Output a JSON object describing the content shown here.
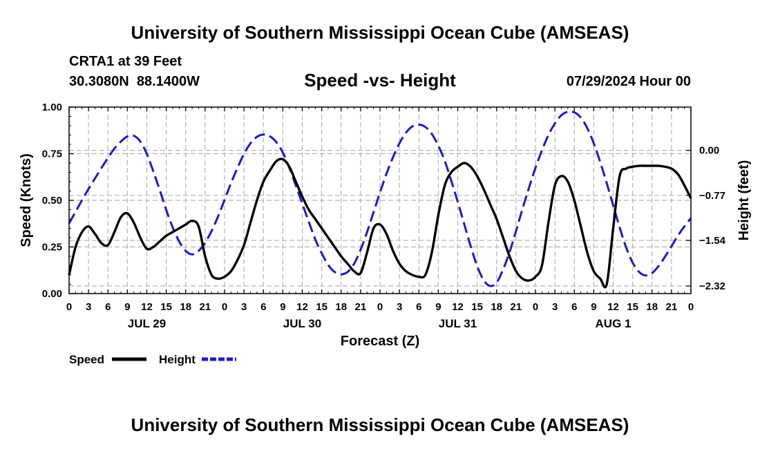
{
  "header": {
    "title": "University of Southern Mississippi Ocean Cube (AMSEAS)",
    "station": "CRTA1 at 39 Feet",
    "coords": "30.3080N  88.1400W",
    "chart_title": "Speed -vs- Height",
    "run_time": "07/29/2024 Hour 00"
  },
  "footer": {
    "title": "University of Southern Mississippi Ocean Cube (AMSEAS)"
  },
  "colors": {
    "speed": "#000000",
    "height": "#1a1acc",
    "grid": "#b4b4b4"
  },
  "chart_data": {
    "type": "line",
    "title": "Speed -vs- Height",
    "xlabel": "Forecast (Z)",
    "ylabel": "Speed (Knots)",
    "y2label": "Height (feet)",
    "xlim": [
      0,
      96
    ],
    "ylim": [
      0,
      1
    ],
    "y2lim": [
      -2.45,
      0.74
    ],
    "x_ticks": [
      0,
      3,
      6,
      9,
      12,
      15,
      18,
      21,
      24,
      27,
      30,
      33,
      36,
      39,
      42,
      45,
      48,
      51,
      54,
      57,
      60,
      63,
      66,
      69,
      72,
      75,
      78,
      81,
      84,
      87,
      90,
      93,
      96
    ],
    "x_tick_labels": [
      "0",
      "3",
      "6",
      "9",
      "12",
      "15",
      "18",
      "21",
      "0",
      "3",
      "6",
      "9",
      "12",
      "15",
      "18",
      "21",
      "0",
      "3",
      "6",
      "9",
      "12",
      "15",
      "18",
      "21",
      "0",
      "3",
      "6",
      "9",
      "12",
      "15",
      "18",
      "21",
      "0"
    ],
    "day_labels": [
      {
        "label": "JUL 29",
        "x": 12
      },
      {
        "label": "JUL 30",
        "x": 36
      },
      {
        "label": "JUL 31",
        "x": 60
      },
      {
        "label": "AUG 1",
        "x": 84
      }
    ],
    "y_ticks": [
      0.0,
      0.25,
      0.5,
      0.75,
      1.0
    ],
    "y_tick_labels": [
      "0.00",
      "0.25",
      "0.50",
      "0.75",
      "1.00"
    ],
    "y2_ticks": [
      0.0,
      -0.77,
      -1.54,
      -2.32
    ],
    "y2_tick_labels": [
      "0.00",
      "−0.77",
      "−1.54",
      "−2.32"
    ],
    "legend": [
      {
        "name": "Speed",
        "style": "solid"
      },
      {
        "name": "Height",
        "style": "dashed"
      }
    ],
    "series": [
      {
        "name": "Speed",
        "axis": "left",
        "style": "solid",
        "x": [
          0,
          1,
          2,
          3,
          4,
          5,
          6,
          7,
          8,
          9,
          10,
          11,
          12,
          13,
          14,
          15,
          16,
          17,
          18,
          19,
          20,
          21,
          22,
          23,
          24,
          25,
          26,
          27,
          28,
          29,
          30,
          31,
          32,
          33,
          34,
          35,
          36,
          37,
          38,
          39,
          40,
          41,
          42,
          43,
          44,
          45,
          46,
          47,
          48,
          49,
          50,
          51,
          52,
          53,
          54,
          55,
          56,
          57,
          58,
          59,
          60,
          61,
          62,
          63,
          64,
          65,
          66,
          67,
          68,
          69,
          70,
          71,
          72,
          73,
          74,
          75,
          76,
          77,
          78,
          79,
          80,
          81,
          82,
          83,
          84,
          85,
          86,
          87,
          88,
          89,
          90,
          91,
          92,
          93,
          94,
          95,
          96
        ],
        "values": [
          0.1,
          0.25,
          0.33,
          0.36,
          0.32,
          0.27,
          0.26,
          0.33,
          0.41,
          0.43,
          0.38,
          0.3,
          0.24,
          0.25,
          0.28,
          0.31,
          0.33,
          0.35,
          0.37,
          0.39,
          0.36,
          0.2,
          0.1,
          0.08,
          0.09,
          0.12,
          0.18,
          0.26,
          0.38,
          0.5,
          0.6,
          0.66,
          0.71,
          0.72,
          0.68,
          0.6,
          0.52,
          0.45,
          0.4,
          0.35,
          0.3,
          0.25,
          0.2,
          0.16,
          0.12,
          0.11,
          0.22,
          0.35,
          0.37,
          0.32,
          0.23,
          0.16,
          0.12,
          0.1,
          0.09,
          0.1,
          0.22,
          0.42,
          0.58,
          0.65,
          0.68,
          0.7,
          0.68,
          0.63,
          0.56,
          0.48,
          0.4,
          0.3,
          0.2,
          0.12,
          0.08,
          0.07,
          0.09,
          0.15,
          0.38,
          0.58,
          0.63,
          0.6,
          0.5,
          0.36,
          0.22,
          0.12,
          0.08,
          0.05,
          0.35,
          0.63,
          0.67,
          0.68,
          0.685,
          0.685,
          0.685,
          0.685,
          0.68,
          0.67,
          0.64,
          0.58,
          0.51
        ]
      },
      {
        "name": "Height",
        "axis": "right",
        "style": "dashed",
        "x": [
          0,
          1,
          2,
          3,
          4,
          5,
          6,
          7,
          8,
          9,
          10,
          11,
          12,
          13,
          14,
          15,
          16,
          17,
          18,
          19,
          20,
          21,
          22,
          23,
          24,
          25,
          26,
          27,
          28,
          29,
          30,
          31,
          32,
          33,
          34,
          35,
          36,
          37,
          38,
          39,
          40,
          41,
          42,
          43,
          44,
          45,
          46,
          47,
          48,
          49,
          50,
          51,
          52,
          53,
          54,
          55,
          56,
          57,
          58,
          59,
          60,
          61,
          62,
          63,
          64,
          65,
          66,
          67,
          68,
          69,
          70,
          71,
          72,
          73,
          74,
          75,
          76,
          77,
          78,
          79,
          80,
          81,
          82,
          83,
          84,
          85,
          86,
          87,
          88,
          89,
          90,
          91,
          92,
          93,
          94,
          95,
          96
        ],
        "values": [
          -1.25,
          -1.05,
          -0.85,
          -0.66,
          -0.48,
          -0.3,
          -0.13,
          0.03,
          0.15,
          0.24,
          0.25,
          0.15,
          -0.06,
          -0.36,
          -0.68,
          -1.02,
          -1.32,
          -1.56,
          -1.72,
          -1.78,
          -1.72,
          -1.58,
          -1.38,
          -1.13,
          -0.85,
          -0.56,
          -0.3,
          -0.06,
          0.12,
          0.23,
          0.27,
          0.24,
          0.14,
          -0.04,
          -0.3,
          -0.6,
          -0.91,
          -1.22,
          -1.52,
          -1.76,
          -1.96,
          -2.08,
          -2.12,
          -2.08,
          -1.94,
          -1.7,
          -1.4,
          -1.06,
          -0.72,
          -0.4,
          -0.12,
          0.12,
          0.3,
          0.41,
          0.44,
          0.4,
          0.28,
          0.08,
          -0.18,
          -0.52,
          -0.88,
          -1.26,
          -1.64,
          -1.98,
          -2.22,
          -2.32,
          -2.26,
          -2.04,
          -1.74,
          -1.38,
          -1.0,
          -0.64,
          -0.3,
          0.0,
          0.26,
          0.46,
          0.6,
          0.66,
          0.65,
          0.56,
          0.38,
          0.12,
          -0.2,
          -0.56,
          -0.94,
          -1.32,
          -1.66,
          -1.92,
          -2.08,
          -2.14,
          -2.1,
          -1.98,
          -1.82,
          -1.64,
          -1.46,
          -1.3,
          -1.16
        ]
      }
    ]
  }
}
